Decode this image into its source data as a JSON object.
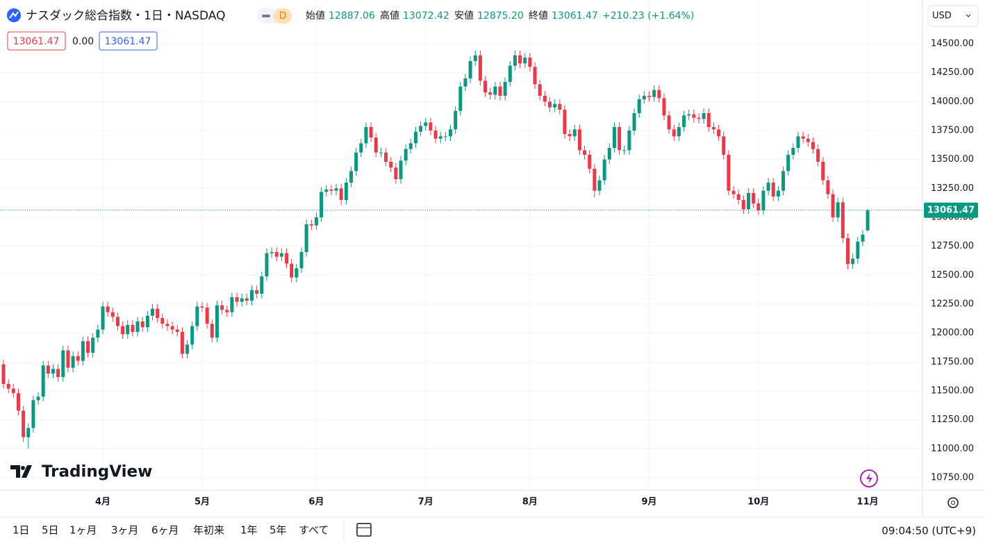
{
  "header": {
    "title": "ナスダック総合指数・1日・NASDAQ",
    "interval": "D",
    "open_label": "始値",
    "high_label": "高値",
    "low_label": "安値",
    "close_label": "終値",
    "low": "12875.20",
    "change": "+210.23 (+1.64%)",
    "zero_change": "0.00",
    "currency": "USD"
  },
  "brand": "TradingView",
  "toolbar": {
    "ranges": [
      "1日",
      "5日",
      "1ヶ月",
      "3ヶ月",
      "6ヶ月",
      "年初来",
      "1年",
      "5年",
      "すべて"
    ],
    "time": "09:04:50 (UTC+9)"
  },
  "chart_data": {
    "type": "candlestick",
    "up_color": "#089981",
    "down_color": "#f23645",
    "grid": true,
    "categories": [
      null,
      null,
      null,
      null,
      null,
      null,
      null,
      null,
      null,
      null,
      null,
      null,
      null,
      null,
      null,
      null,
      null,
      null,
      null,
      null,
      "4月",
      null,
      null,
      null,
      null,
      null,
      null,
      null,
      null,
      null,
      null,
      null,
      null,
      null,
      null,
      null,
      null,
      null,
      null,
      null,
      "5月",
      null,
      null,
      null,
      null,
      null,
      null,
      null,
      null,
      null,
      null,
      null,
      null,
      null,
      null,
      null,
      null,
      null,
      null,
      null,
      null,
      null,
      null,
      "6月",
      null,
      null,
      null,
      null,
      null,
      null,
      null,
      null,
      null,
      null,
      null,
      null,
      null,
      null,
      null,
      null,
      null,
      null,
      null,
      null,
      null,
      "7月",
      null,
      null,
      null,
      null,
      null,
      null,
      null,
      null,
      null,
      null,
      null,
      null,
      null,
      null,
      null,
      null,
      null,
      null,
      null,
      null,
      "8月",
      null,
      null,
      null,
      null,
      null,
      null,
      null,
      null,
      null,
      null,
      null,
      null,
      null,
      null,
      null,
      null,
      null,
      null,
      null,
      null,
      null,
      null,
      null,
      "9月",
      null,
      null,
      null,
      null,
      null,
      null,
      null,
      null,
      null,
      null,
      null,
      null,
      null,
      null,
      null,
      null,
      null,
      null,
      null,
      null,
      null,
      "10月",
      null,
      null,
      null,
      null,
      null,
      null,
      null,
      null,
      null,
      null,
      null,
      null,
      null,
      null,
      null,
      null,
      null,
      null,
      null,
      null,
      null,
      "11月"
    ],
    "open": [
      11730,
      11560,
      11520,
      11480,
      11330,
      11100,
      11180,
      11420,
      11450,
      11720,
      11650,
      11690,
      11620,
      11850,
      11700,
      11800,
      11760,
      11930,
      11830,
      11960,
      12030,
      12230,
      12180,
      12140,
      12060,
      11990,
      12070,
      12010,
      12100,
      12050,
      12150,
      12210,
      12130,
      12080,
      12060,
      12030,
      12010,
      11820,
      11900,
      12060,
      12230,
      12220,
      12080,
      11960,
      12240,
      12200,
      12180,
      12310,
      12270,
      12300,
      12280,
      12370,
      12340,
      12490,
      12690,
      12700,
      12660,
      12690,
      12600,
      12480,
      12560,
      12700,
      12940,
      12930,
      13000,
      13220,
      13240,
      13230,
      13250,
      13150,
      13300,
      13400,
      13560,
      13640,
      13780,
      13690,
      13560,
      13560,
      13480,
      13430,
      13330,
      13490,
      13590,
      13640,
      13740,
      13790,
      13820,
      13750,
      13680,
      13700,
      13700,
      13760,
      13920,
      14130,
      14200,
      14350,
      14400,
      14180,
      14080,
      14060,
      14130,
      14050,
      14170,
      14310,
      14400,
      14330,
      14380,
      14300,
      14150,
      14050,
      14000,
      13950,
      13980,
      13930,
      13720,
      13700,
      13760,
      13580,
      13540,
      13420,
      13230,
      13320,
      13500,
      13600,
      13780,
      13580,
      13580,
      13750,
      13900,
      14020,
      14050,
      14040,
      14100,
      14030,
      13880,
      13760,
      13700,
      13780,
      13880,
      13890,
      13860,
      13850,
      13900,
      13780,
      13760,
      13700,
      13540,
      13230,
      13200,
      13150,
      13070,
      13210,
      13120,
      13060,
      13230,
      13300,
      13180,
      13230,
      13400,
      13540,
      13600,
      13700,
      13680,
      13650,
      13590,
      13480,
      13320,
      13200,
      13000,
      13130,
      12820,
      12596,
      12643,
      12790,
      12887.06
    ],
    "high": [
      11770,
      11600,
      11560,
      11520,
      11370,
      11220,
      11460,
      11490,
      11760,
      11760,
      11730,
      11730,
      11890,
      11890,
      11840,
      11840,
      11970,
      11970,
      12000,
      12070,
      12270,
      12270,
      12220,
      12180,
      12100,
      12110,
      12110,
      12140,
      12140,
      12190,
      12250,
      12250,
      12170,
      12120,
      12100,
      12070,
      12050,
      11940,
      12100,
      12270,
      12270,
      12260,
      12120,
      12280,
      12280,
      12240,
      12350,
      12350,
      12340,
      12340,
      12410,
      12410,
      12530,
      12730,
      12740,
      12740,
      12730,
      12730,
      12640,
      12600,
      12740,
      12980,
      12980,
      13040,
      13260,
      13280,
      13280,
      13290,
      13290,
      13340,
      13440,
      13600,
      13680,
      13820,
      13820,
      13730,
      13600,
      13600,
      13520,
      13470,
      13530,
      13630,
      13680,
      13780,
      13830,
      13860,
      13860,
      13790,
      13740,
      13740,
      13800,
      13960,
      14170,
      14240,
      14390,
      14440,
      14440,
      14220,
      14120,
      14170,
      14170,
      14210,
      14350,
      14440,
      14440,
      14420,
      14420,
      14340,
      14190,
      14090,
      14040,
      14020,
      14020,
      13970,
      13760,
      13800,
      13800,
      13620,
      13580,
      13460,
      13360,
      13540,
      13640,
      13820,
      13820,
      13620,
      13790,
      13940,
      14060,
      14090,
      14090,
      14140,
      14140,
      14070,
      13920,
      13800,
      13820,
      13920,
      13930,
      13930,
      13900,
      13940,
      13940,
      13820,
      13800,
      13740,
      13580,
      13270,
      13240,
      13190,
      13250,
      13250,
      13160,
      13270,
      13340,
      13340,
      13270,
      13440,
      13580,
      13640,
      13740,
      13740,
      13720,
      13690,
      13630,
      13520,
      13360,
      13240,
      13170,
      13170,
      12860,
      12690,
      12830,
      12890,
      13072.42
    ],
    "low": [
      11520,
      11480,
      11440,
      11290,
      11060,
      11000,
      11140,
      11380,
      11410,
      11610,
      11610,
      11580,
      11580,
      11660,
      11660,
      11720,
      11720,
      11790,
      11790,
      11920,
      11990,
      12140,
      12100,
      12020,
      11950,
      11950,
      11970,
      11970,
      12010,
      12010,
      12110,
      12090,
      12040,
      12020,
      11990,
      11970,
      11780,
      11780,
      11860,
      12020,
      12180,
      12040,
      11920,
      11920,
      12160,
      12140,
      12140,
      12230,
      12230,
      12240,
      12240,
      12300,
      12300,
      12450,
      12650,
      12620,
      12620,
      12560,
      12440,
      12440,
      12520,
      12660,
      12890,
      12890,
      12960,
      13180,
      13190,
      13190,
      13110,
      13110,
      13260,
      13360,
      13520,
      13600,
      13650,
      13520,
      13520,
      13440,
      13390,
      13290,
      13290,
      13450,
      13550,
      13600,
      13700,
      13750,
      13710,
      13640,
      13640,
      13660,
      13660,
      13720,
      13880,
      14090,
      14160,
      14310,
      14140,
      14040,
      14020,
      14020,
      14010,
      14010,
      14130,
      14270,
      14290,
      14290,
      14260,
      14110,
      14010,
      13960,
      13910,
      13910,
      13890,
      13680,
      13660,
      13660,
      13540,
      13500,
      13380,
      13170,
      13190,
      13280,
      13460,
      13560,
      13540,
      13540,
      13540,
      13710,
      13860,
      13980,
      14000,
      14000,
      13990,
      13840,
      13720,
      13660,
      13660,
      13740,
      13840,
      13820,
      13810,
      13810,
      13740,
      13720,
      13660,
      13500,
      13190,
      13160,
      13110,
      13030,
      13030,
      13080,
      13020,
      13020,
      13190,
      13140,
      13140,
      13190,
      13360,
      13500,
      13560,
      13640,
      13610,
      13550,
      13440,
      13280,
      13160,
      12960,
      12960,
      12780,
      12550,
      12556,
      12600,
      12750,
      12875.2
    ],
    "close": [
      11560,
      11520,
      11480,
      11330,
      11100,
      11180,
      11420,
      11450,
      11720,
      11650,
      11690,
      11620,
      11850,
      11700,
      11800,
      11760,
      11930,
      11830,
      11960,
      12030,
      12230,
      12180,
      12140,
      12060,
      11990,
      12070,
      12010,
      12100,
      12050,
      12150,
      12210,
      12130,
      12080,
      12060,
      12030,
      12010,
      11820,
      11900,
      12060,
      12230,
      12220,
      12080,
      11960,
      12240,
      12200,
      12180,
      12310,
      12270,
      12300,
      12280,
      12370,
      12340,
      12490,
      12690,
      12700,
      12660,
      12690,
      12600,
      12480,
      12560,
      12700,
      12940,
      12930,
      13000,
      13220,
      13240,
      13230,
      13250,
      13150,
      13300,
      13400,
      13560,
      13640,
      13780,
      13690,
      13560,
      13560,
      13480,
      13430,
      13330,
      13490,
      13590,
      13640,
      13740,
      13790,
      13820,
      13750,
      13680,
      13700,
      13700,
      13760,
      13920,
      14130,
      14200,
      14350,
      14400,
      14180,
      14080,
      14060,
      14130,
      14050,
      14170,
      14310,
      14400,
      14330,
      14380,
      14300,
      14150,
      14050,
      14000,
      13950,
      13980,
      13930,
      13720,
      13700,
      13760,
      13580,
      13540,
      13420,
      13230,
      13320,
      13500,
      13600,
      13780,
      13580,
      13580,
      13750,
      13900,
      14020,
      14050,
      14040,
      14100,
      14030,
      13880,
      13760,
      13700,
      13780,
      13880,
      13890,
      13860,
      13850,
      13900,
      13780,
      13760,
      13700,
      13540,
      13230,
      13200,
      13150,
      13070,
      13210,
      13120,
      13060,
      13230,
      13300,
      13180,
      13230,
      13400,
      13540,
      13600,
      13700,
      13680,
      13650,
      13590,
      13480,
      13320,
      13200,
      13000,
      13130,
      12820,
      12596,
      12643,
      12790,
      12851,
      13061.47
    ],
    "ylim": [
      10642,
      14878
    ],
    "yticks": [
      {
        "value": 10750,
        "label": "10750.00"
      },
      {
        "value": 11000,
        "label": "11000.00"
      },
      {
        "value": 11250,
        "label": "11250.00"
      },
      {
        "value": 11500,
        "label": "11500.00"
      },
      {
        "value": 11750,
        "label": "11750.00"
      },
      {
        "value": 12000,
        "label": "12000.00"
      },
      {
        "value": 12250,
        "label": "12250.00"
      },
      {
        "value": 12500,
        "label": "12500.00"
      },
      {
        "value": 12750,
        "label": "12750.00"
      },
      {
        "value": 13000,
        "label": "13000.00"
      },
      {
        "value": 13250,
        "label": "13250.00"
      },
      {
        "value": 13500,
        "label": "13500.00"
      },
      {
        "value": 13750,
        "label": "13750.00"
      },
      {
        "value": 14000,
        "label": "14000.00"
      },
      {
        "value": 14250,
        "label": "14250.00"
      },
      {
        "value": 14500,
        "label": "14500.00"
      }
    ]
  }
}
